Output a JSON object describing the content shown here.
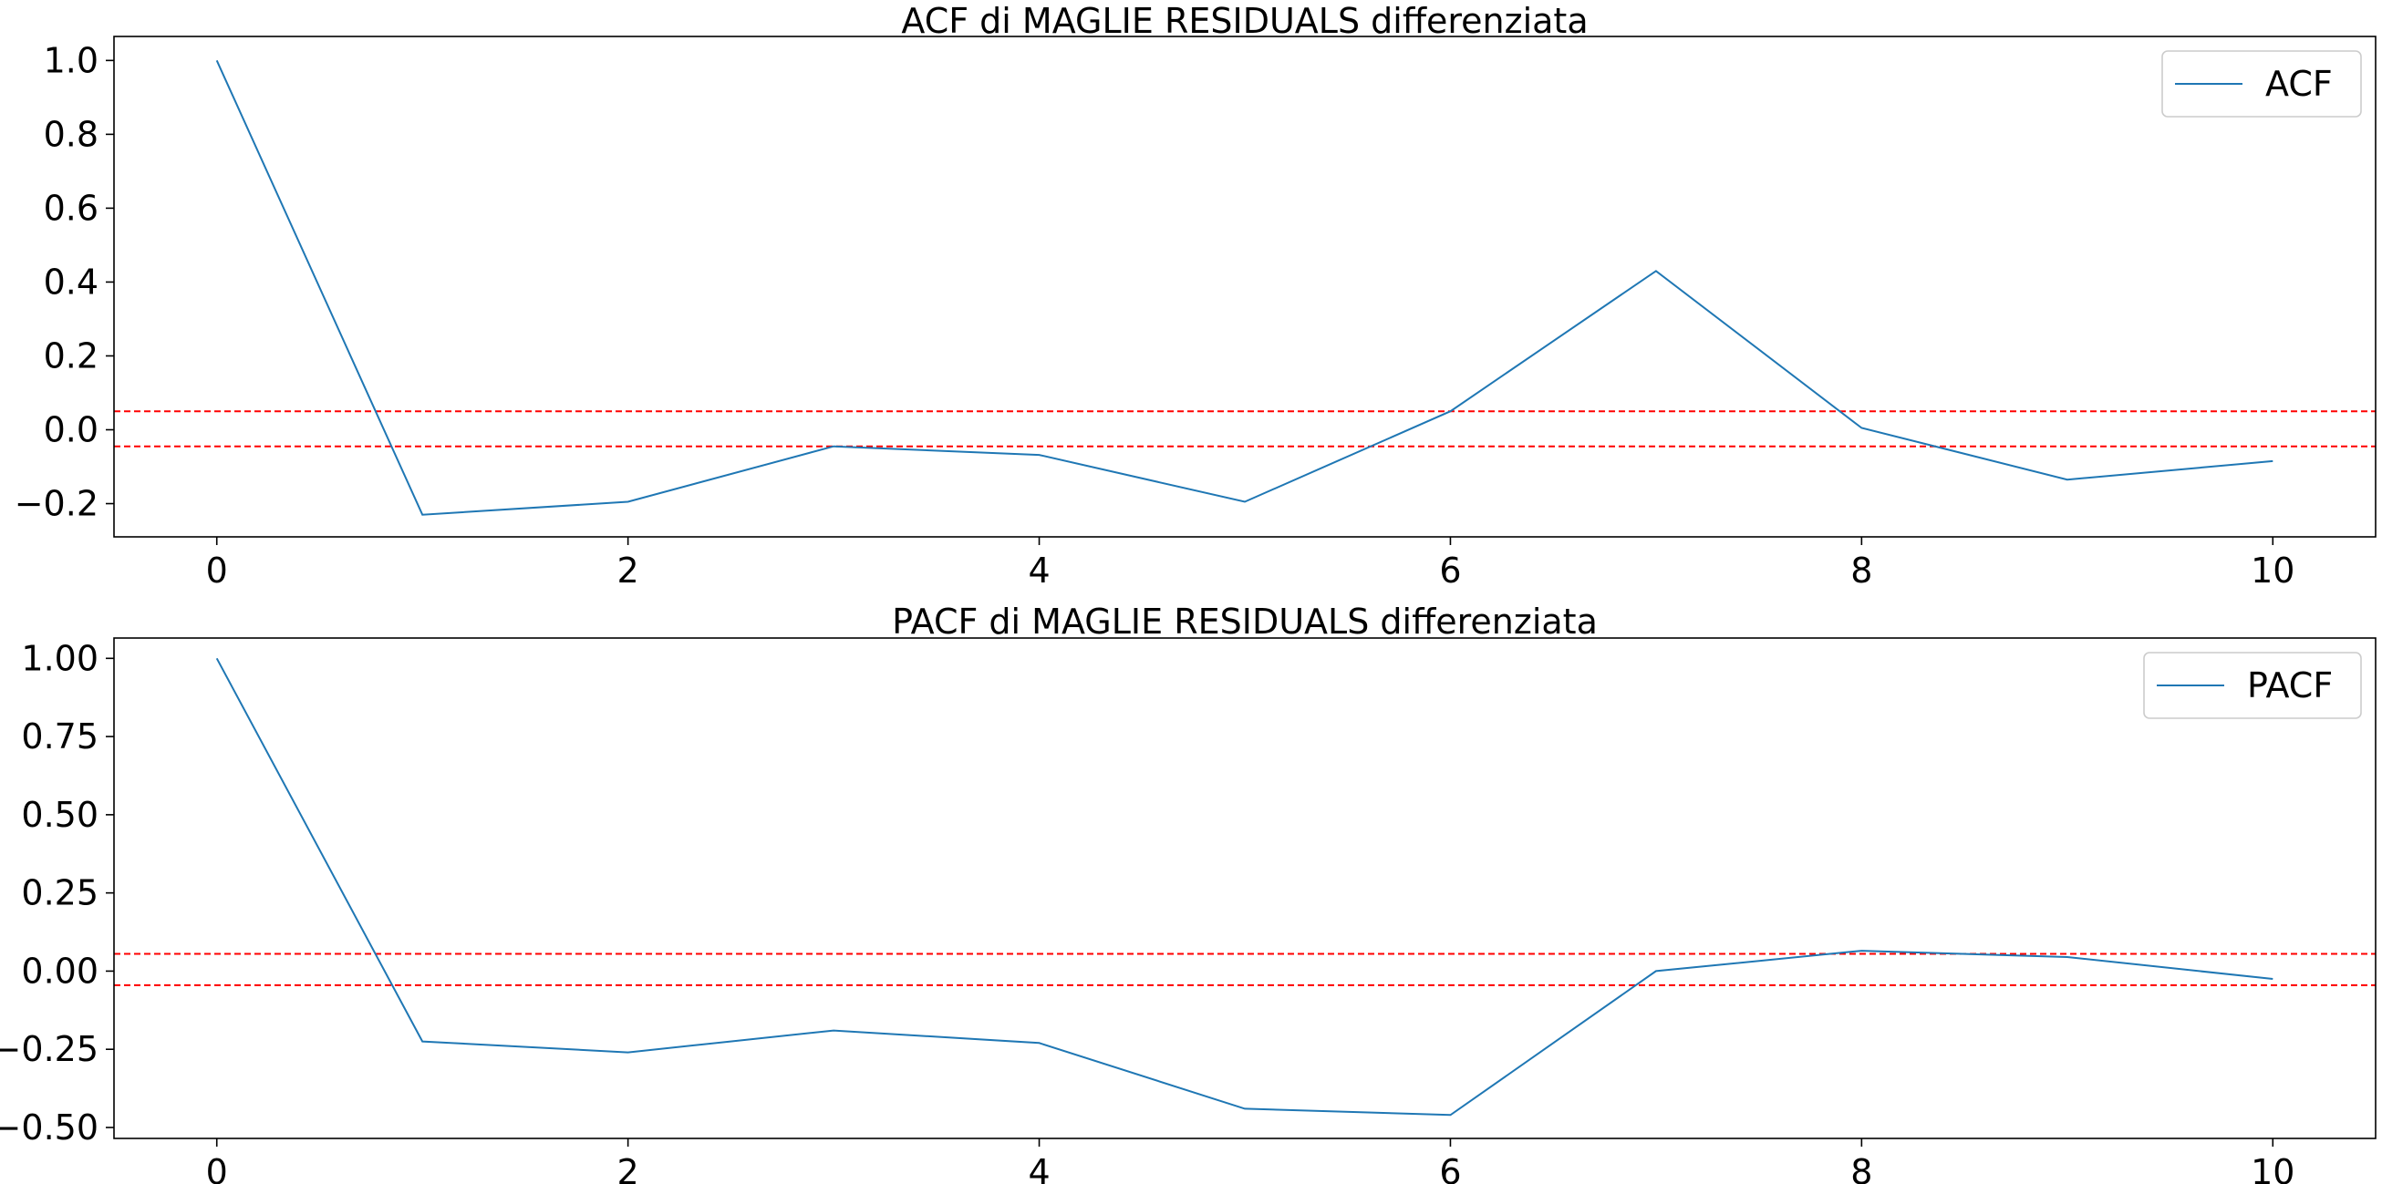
{
  "chart_data": [
    {
      "type": "line",
      "title": "ACF di MAGLIE RESIDUALS differenziata",
      "xlabel": "",
      "ylabel": "",
      "xlim": [
        -0.5,
        10.5
      ],
      "ylim": [
        -0.29,
        1.065
      ],
      "xticks": [
        0,
        2,
        4,
        6,
        8,
        10
      ],
      "yticks": [
        -0.2,
        0.0,
        0.2,
        0.4,
        0.6,
        0.8,
        1.0
      ],
      "ytick_labels": [
        "−0.2",
        "0.0",
        "0.2",
        "0.4",
        "0.6",
        "0.8",
        "1.0"
      ],
      "grid": false,
      "legend_position": "top-right",
      "series": [
        {
          "name": "ACF",
          "color": "#1f77b4",
          "x": [
            0,
            1,
            2,
            3,
            4,
            5,
            6,
            7,
            8,
            9,
            10
          ],
          "y": [
            1.0,
            -0.23,
            -0.195,
            -0.045,
            -0.068,
            -0.195,
            0.05,
            0.43,
            0.005,
            -0.135,
            -0.085
          ]
        }
      ],
      "reference_lines": [
        {
          "y": 0.05,
          "color": "#ff0000",
          "style": "dashed"
        },
        {
          "y": -0.045,
          "color": "#ff0000",
          "style": "dashed"
        }
      ]
    },
    {
      "type": "line",
      "title": "PACF di MAGLIE RESIDUALS differenziata",
      "xlabel": "",
      "ylabel": "",
      "xlim": [
        -0.5,
        10.5
      ],
      "ylim": [
        -0.535,
        1.065
      ],
      "xticks": [
        0,
        2,
        4,
        6,
        8,
        10
      ],
      "yticks": [
        -0.5,
        -0.25,
        0.0,
        0.25,
        0.5,
        0.75,
        1.0
      ],
      "ytick_labels": [
        "−0.50",
        "−0.25",
        "0.00",
        "0.25",
        "0.50",
        "0.75",
        "1.00"
      ],
      "grid": false,
      "legend_position": "top-right",
      "series": [
        {
          "name": "PACF",
          "color": "#1f77b4",
          "x": [
            0,
            1,
            2,
            3,
            4,
            5,
            6,
            7,
            8,
            9,
            10
          ],
          "y": [
            1.0,
            -0.225,
            -0.26,
            -0.19,
            -0.23,
            -0.44,
            -0.46,
            0.0,
            0.065,
            0.045,
            -0.025
          ]
        }
      ],
      "reference_lines": [
        {
          "y": 0.055,
          "color": "#ff0000",
          "style": "dashed"
        },
        {
          "y": -0.045,
          "color": "#ff0000",
          "style": "dashed"
        }
      ]
    }
  ]
}
